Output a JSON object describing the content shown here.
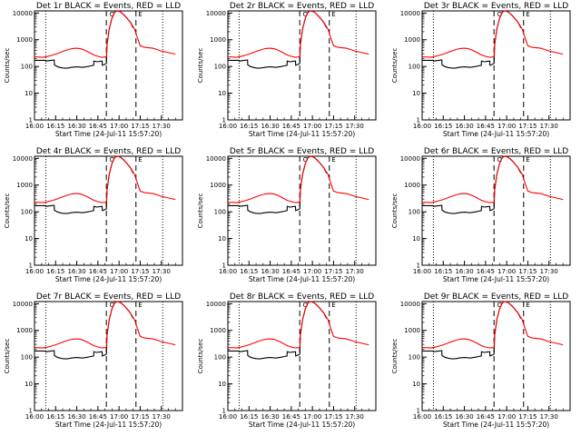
{
  "chart_data": [
    {
      "type": "line",
      "title": "Det 1r BLACK = Events, RED = LLD"
    },
    {
      "type": "line",
      "title": "Det 2r BLACK = Events, RED = LLD"
    },
    {
      "type": "line",
      "title": "Det 3r BLACK = Events, RED = LLD"
    },
    {
      "type": "line",
      "title": "Det 4r BLACK = Events, RED = LLD"
    },
    {
      "type": "line",
      "title": "Det 5r BLACK = Events, RED = LLD"
    },
    {
      "type": "line",
      "title": "Det 6r BLACK = Events, RED = LLD"
    },
    {
      "type": "line",
      "title": "Det 7r BLACK = Events, RED = LLD"
    },
    {
      "type": "line",
      "title": "Det 8r BLACK = Events, RED = LLD"
    },
    {
      "type": "line",
      "title": "Det 9r BLACK = Events, RED = LLD"
    }
  ],
  "shared": {
    "xlabel": "Start Time (24-Jul-11 15:57:20)",
    "ylabel": "Counts/sec",
    "x_ticks": [
      "16:00",
      "16:15",
      "16:30",
      "16:45",
      "17:00",
      "17:15",
      "17:30"
    ],
    "x_tick_minutes": [
      0,
      15,
      30,
      45,
      60,
      75,
      90
    ],
    "x_range_minutes": [
      0,
      105
    ],
    "y_ticks": [
      "1",
      "10",
      "100",
      "1000",
      "10000"
    ],
    "y_tick_values": [
      1,
      10,
      100,
      1000,
      10000
    ],
    "y_range": [
      1,
      12000
    ],
    "y_scale": "log",
    "dotted_line_minutes": [
      8,
      91
    ],
    "dashed_line_minutes": [
      51,
      72
    ],
    "marker_labels": [
      "O",
      "E"
    ],
    "marker_minutes": [
      55,
      75
    ],
    "lld_series": {
      "name": "LLD",
      "color": "#ff0000",
      "x": [
        0,
        3,
        6,
        9,
        12,
        15,
        18,
        21,
        24,
        27,
        30,
        33,
        36,
        39,
        42,
        45,
        48,
        51,
        51.5,
        53,
        55,
        57,
        59,
        61,
        63,
        65,
        68,
        71,
        73,
        75,
        78,
        81,
        84,
        87,
        90,
        95,
        100
      ],
      "y": [
        230,
        225,
        220,
        235,
        260,
        290,
        330,
        380,
        430,
        470,
        480,
        460,
        400,
        330,
        270,
        240,
        220,
        230,
        700,
        2500,
        6500,
        11000,
        12000,
        11000,
        9000,
        7000,
        4500,
        2500,
        1200,
        600,
        520,
        500,
        480,
        430,
        380,
        330,
        290
      ]
    },
    "events_series": {
      "name": "Events",
      "color": "#000000",
      "x": [
        0,
        7.9,
        8,
        10,
        12,
        14,
        14.1,
        16,
        18,
        20,
        22,
        24,
        26,
        28,
        30,
        32,
        34,
        36,
        38,
        40,
        42,
        42.1,
        44,
        46,
        48,
        48.1,
        50,
        51,
        51.5,
        53,
        55,
        57,
        59,
        61,
        63,
        65,
        68,
        70
      ],
      "y": [
        170,
        170,
        160,
        165,
        170,
        175,
        115,
        100,
        92,
        88,
        86,
        88,
        92,
        95,
        97,
        95,
        92,
        96,
        100,
        105,
        110,
        160,
        150,
        155,
        160,
        110,
        120,
        130,
        650,
        2500,
        6500,
        11000,
        12000,
        11000,
        9000,
        7000,
        4500,
        2800
      ]
    }
  }
}
